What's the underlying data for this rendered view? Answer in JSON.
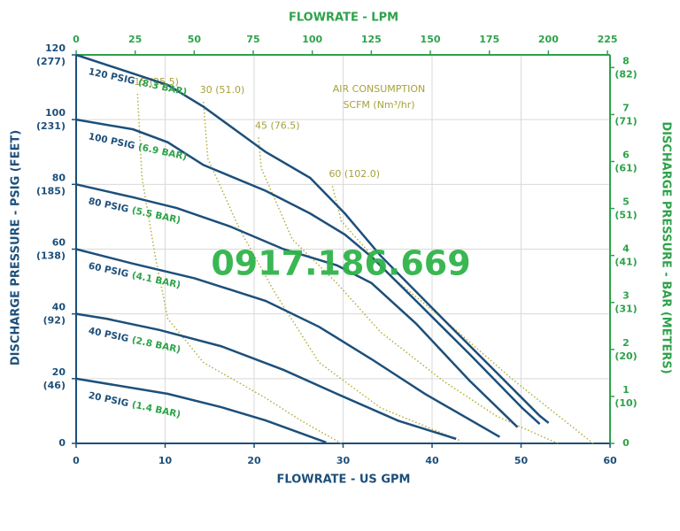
{
  "chart_data": {
    "type": "line",
    "x_label": "FLOWRATE - US GPM",
    "x2_label": "FLOWRATE - LPM",
    "y_label": "DISCHARGE PRESSURE - PSIG (FEET)",
    "y2_label": "DISCHARGE PRESSURE - BAR (METERS)",
    "xlim": [
      0,
      60
    ],
    "xticks": [
      0,
      10,
      20,
      30,
      40,
      50,
      60
    ],
    "x2lim": [
      0,
      226.1
    ],
    "x2ticks": [
      0,
      25,
      50,
      75,
      100,
      125,
      150,
      175,
      200,
      225
    ],
    "ylim": [
      0,
      120
    ],
    "yticks": [
      0,
      {
        "value": 20,
        "label": "20",
        "secondary": "(46)"
      },
      {
        "value": 40,
        "label": "40",
        "secondary": "(92)"
      },
      {
        "value": 60,
        "label": "60",
        "secondary": "(138)"
      },
      {
        "value": 80,
        "label": "80",
        "secondary": "(185)"
      },
      {
        "value": 100,
        "label": "100",
        "secondary": "(231)"
      },
      {
        "value": 120,
        "label": "120",
        "secondary": "(277)"
      }
    ],
    "y2lim": [
      0,
      8.27
    ],
    "y2ticks": [
      0,
      {
        "value": 1,
        "label": "1",
        "secondary": "(10)"
      },
      {
        "value": 2,
        "label": "2",
        "secondary": "(20)"
      },
      {
        "value": 3,
        "label": "3",
        "secondary": "(31)"
      },
      {
        "value": 4,
        "label": "4",
        "secondary": "(41)"
      },
      {
        "value": 5,
        "label": "5",
        "secondary": "(51)"
      },
      {
        "value": 6,
        "label": "6",
        "secondary": "(61)"
      },
      {
        "value": 7,
        "label": "7",
        "secondary": "(71)"
      },
      {
        "value": 8,
        "label": "8",
        "secondary": "(82)"
      }
    ],
    "grid": true,
    "series": [
      {
        "name": "120 PSIG",
        "bar_label": "(8.3 BAR)",
        "color": "#1d4f7a",
        "x": [
          0,
          10.3,
          14.3,
          21.3,
          26.3,
          30.2,
          34.2,
          41.2,
          47.2,
          52.1,
          53.1
        ],
        "values": [
          120,
          110.7,
          104,
          90,
          82,
          71,
          58,
          38.5,
          22,
          8.5,
          6.3
        ]
      },
      {
        "name": "100 PSIG",
        "bar_label": "(6.9 BAR)",
        "color": "#1d4f7a",
        "x": [
          0,
          6.4,
          10.3,
          14.3,
          21.3,
          26.3,
          30.2,
          33.2,
          38.2,
          44.2,
          50.1,
          52.1
        ],
        "values": [
          100,
          97,
          93,
          86,
          78,
          71,
          64.5,
          57.6,
          44,
          27.6,
          11,
          6
        ]
      },
      {
        "name": "80 PSIG",
        "bar_label": "(5.5 BAR)",
        "color": "#1d4f7a",
        "x": [
          0,
          6.4,
          11.3,
          17.3,
          23.3,
          29.3,
          33.2,
          38.2,
          44.2,
          49.6
        ],
        "values": [
          80,
          76,
          72.7,
          67,
          60,
          55,
          49.5,
          37,
          19.4,
          5
        ]
      },
      {
        "name": "60 PSIG",
        "bar_label": "(4.1 BAR)",
        "color": "#1d4f7a",
        "x": [
          0,
          6.4,
          13.3,
          21.3,
          27.3,
          33.2,
          39.2,
          47.6
        ],
        "values": [
          60,
          55.5,
          51,
          44,
          36,
          26,
          15.3,
          2
        ]
      },
      {
        "name": "40 PSIG",
        "bar_label": "(2.8 BAR)",
        "color": "#1d4f7a",
        "x": [
          0,
          3.4,
          9.4,
          16.3,
          23.3,
          29.3,
          36.2,
          42.7
        ],
        "values": [
          40,
          38.5,
          35,
          30,
          22.7,
          15.3,
          7,
          1.4
        ]
      },
      {
        "name": "20 PSIG",
        "bar_label": "(1.4 BAR)",
        "color": "#1d4f7a",
        "x": [
          0,
          10.3,
          16.3,
          21.3,
          28.1
        ],
        "values": [
          20,
          15.3,
          11.2,
          7.1,
          0.3
        ]
      }
    ],
    "air_title": "AIR CONSUMPTION",
    "air_units": "SCFM (Nm³/hr)",
    "air_color": "#b5ae3c",
    "air_curves": [
      {
        "name": "15 (25.5)",
        "x": [
          6.9,
          7.4,
          8.9,
          10.3,
          14.3,
          21.3,
          25.3,
          29.8
        ],
        "values": [
          108,
          82,
          57.6,
          38.5,
          25,
          14,
          7,
          0
        ]
      },
      {
        "name": "30 (51.0)",
        "x": [
          14.3,
          14.8,
          18.4,
          22.3,
          27.3,
          34.2,
          43.2
        ],
        "values": [
          105.5,
          88,
          66,
          46.7,
          25,
          11,
          0.8
        ]
      },
      {
        "name": "45 (76.5)",
        "x": [
          20.5,
          20.8,
          24.3,
          29.3,
          34.2,
          41.2,
          47.2,
          54.1
        ],
        "values": [
          94.5,
          85,
          63,
          49.5,
          34.4,
          19.4,
          8.5,
          0
        ]
      },
      {
        "name": "60 (102.0)",
        "x": [
          28.8,
          29.8,
          35.2,
          41.2,
          49.2,
          58.1
        ],
        "values": [
          79.5,
          68.6,
          52,
          38.5,
          19.4,
          0
        ]
      }
    ],
    "watermark": "0917.186.669"
  }
}
